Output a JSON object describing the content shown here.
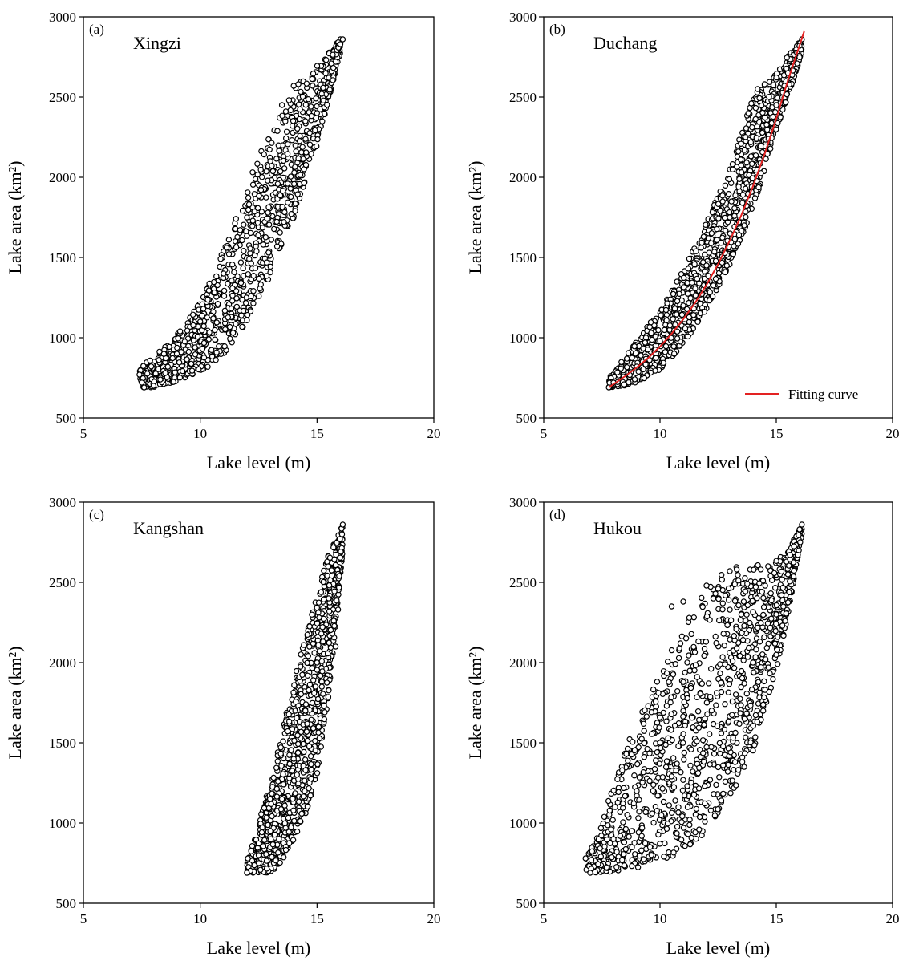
{
  "colors": {
    "marker_edge": "#000000",
    "marker_face": "#ffffff",
    "fit_line": "#e32222",
    "axes": "#000000"
  },
  "chart_data": [
    {
      "type": "scatter",
      "panel_label": "(a)",
      "title": "Xingzi",
      "xlabel": "Lake level (m)",
      "ylabel": "Lake area (km²)",
      "xlim": [
        5,
        20
      ],
      "ylim": [
        500,
        3000
      ],
      "xticks": [
        5,
        10,
        15,
        20
      ],
      "yticks": [
        500,
        1000,
        1500,
        2000,
        2500,
        3000
      ],
      "grid": false,
      "band": [
        [
          7.4,
          690,
          820
        ],
        [
          8.0,
          690,
          880
        ],
        [
          9.0,
          730,
          1020
        ],
        [
          10.0,
          780,
          1220
        ],
        [
          11.0,
          900,
          1550
        ],
        [
          12.0,
          1100,
          1950
        ],
        [
          13.0,
          1380,
          2300
        ],
        [
          14.0,
          1750,
          2550
        ],
        [
          15.0,
          2200,
          2700
        ],
        [
          16.0,
          2780,
          2860
        ]
      ],
      "n_points": 1100,
      "series": [
        {
          "x": [
            7.4,
            7.5,
            7.6,
            8.0,
            8.5,
            9.0,
            10.0,
            11.0,
            12.0,
            13.0,
            13.5,
            13.8,
            14.0,
            14.2,
            14.5,
            15.0,
            15.2,
            15.5,
            15.8,
            16.0,
            16.1
          ],
          "y": [
            770,
            720,
            690,
            700,
            780,
            900,
            1100,
            1400,
            1750,
            2100,
            2450,
            2480,
            2570,
            2580,
            2350,
            2400,
            2520,
            2620,
            2720,
            2830,
            2860
          ]
        }
      ]
    },
    {
      "type": "scatter",
      "panel_label": "(b)",
      "title": "Duchang",
      "xlabel": "Lake level (m)",
      "ylabel": "Lake area (km²)",
      "xlim": [
        5,
        20
      ],
      "ylim": [
        500,
        3000
      ],
      "xticks": [
        5,
        10,
        15,
        20
      ],
      "yticks": [
        500,
        1000,
        1500,
        2000,
        2500,
        3000
      ],
      "grid": false,
      "band": [
        [
          7.8,
          690,
          760
        ],
        [
          8.5,
          700,
          880
        ],
        [
          9.0,
          720,
          980
        ],
        [
          10.0,
          800,
          1180
        ],
        [
          11.0,
          960,
          1420
        ],
        [
          12.0,
          1180,
          1720
        ],
        [
          13.0,
          1460,
          2060
        ],
        [
          14.0,
          1800,
          2500
        ],
        [
          14.5,
          2050,
          2580
        ],
        [
          15.0,
          2300,
          2650
        ],
        [
          15.5,
          2500,
          2760
        ],
        [
          16.1,
          2780,
          2860
        ]
      ],
      "n_points": 1300,
      "series": [
        {
          "x": [
            7.8,
            8.0,
            9.0,
            10.0,
            11.0,
            12.0,
            13.0,
            13.8,
            14.2,
            14.5,
            15.0,
            15.5,
            16.0,
            16.1
          ],
          "y": [
            690,
            720,
            820,
            980,
            1200,
            1450,
            1750,
            2400,
            2550,
            2580,
            2450,
            2650,
            2820,
            2860
          ]
        }
      ],
      "fit_curve": {
        "name": "Fitting curve",
        "x": [
          7.8,
          8.5,
          9.0,
          9.5,
          10.0,
          10.5,
          11.0,
          11.5,
          12.0,
          12.5,
          13.0,
          13.5,
          14.0,
          14.5,
          15.0,
          15.5,
          16.2
        ],
        "y": [
          690,
          760,
          815,
          875,
          945,
          1025,
          1115,
          1215,
          1330,
          1460,
          1605,
          1765,
          1945,
          2145,
          2365,
          2605,
          2910
        ]
      }
    },
    {
      "type": "scatter",
      "panel_label": "(c)",
      "title": "Kangshan",
      "xlabel": "Lake level (m)",
      "ylabel": "Lake area (km²)",
      "xlim": [
        5,
        20
      ],
      "ylim": [
        500,
        3000
      ],
      "xticks": [
        5,
        10,
        15,
        20
      ],
      "yticks": [
        500,
        1000,
        1500,
        2000,
        2500,
        3000
      ],
      "grid": false,
      "band": [
        [
          12.0,
          690,
          760
        ],
        [
          12.5,
          690,
          1000
        ],
        [
          13.0,
          690,
          1250
        ],
        [
          13.5,
          750,
          1550
        ],
        [
          14.0,
          900,
          1900
        ],
        [
          14.5,
          1050,
          2150
        ],
        [
          15.0,
          1300,
          2450
        ],
        [
          15.5,
          1800,
          2680
        ],
        [
          16.1,
          2700,
          2860
        ]
      ],
      "n_points": 1100,
      "series": [
        {
          "x": [
            12.0,
            12.5,
            13.0,
            13.5,
            14.0,
            14.5,
            15.0,
            15.5,
            15.8,
            15.9,
            16.1
          ],
          "y": [
            690,
            800,
            950,
            1150,
            1400,
            1700,
            2000,
            2400,
            2100,
            2330,
            2860
          ]
        }
      ]
    },
    {
      "type": "scatter",
      "panel_label": "(d)",
      "title": "Hukou",
      "xlabel": "Lake level (m)",
      "ylabel": "Lake area (km²)",
      "xlim": [
        5,
        20
      ],
      "ylim": [
        500,
        3000
      ],
      "xticks": [
        5,
        10,
        15,
        20
      ],
      "yticks": [
        500,
        1000,
        1500,
        2000,
        2500,
        3000
      ],
      "grid": false,
      "band": [
        [
          6.8,
          690,
          780
        ],
        [
          7.5,
          690,
          1000
        ],
        [
          8.0,
          700,
          1250
        ],
        [
          9.0,
          720,
          1650
        ],
        [
          10.0,
          760,
          1950
        ],
        [
          11.0,
          820,
          2250
        ],
        [
          12.0,
          950,
          2450
        ],
        [
          13.0,
          1150,
          2600
        ],
        [
          14.0,
          1450,
          2600
        ],
        [
          15.0,
          1950,
          2650
        ],
        [
          15.5,
          2300,
          2700
        ],
        [
          16.1,
          2800,
          2860
        ]
      ],
      "n_points": 1200,
      "series": [
        {
          "x": [
            6.8,
            7.0,
            8.0,
            9.0,
            10.0,
            10.5,
            11.0,
            12.0,
            12.5,
            13.0,
            13.3,
            13.6,
            14.0,
            15.0,
            15.5,
            16.0,
            16.1
          ],
          "y": [
            780,
            690,
            900,
            1200,
            1500,
            2350,
            2380,
            2480,
            2460,
            2570,
            2580,
            2380,
            2000,
            2300,
            2550,
            2830,
            2860
          ]
        }
      ]
    }
  ]
}
